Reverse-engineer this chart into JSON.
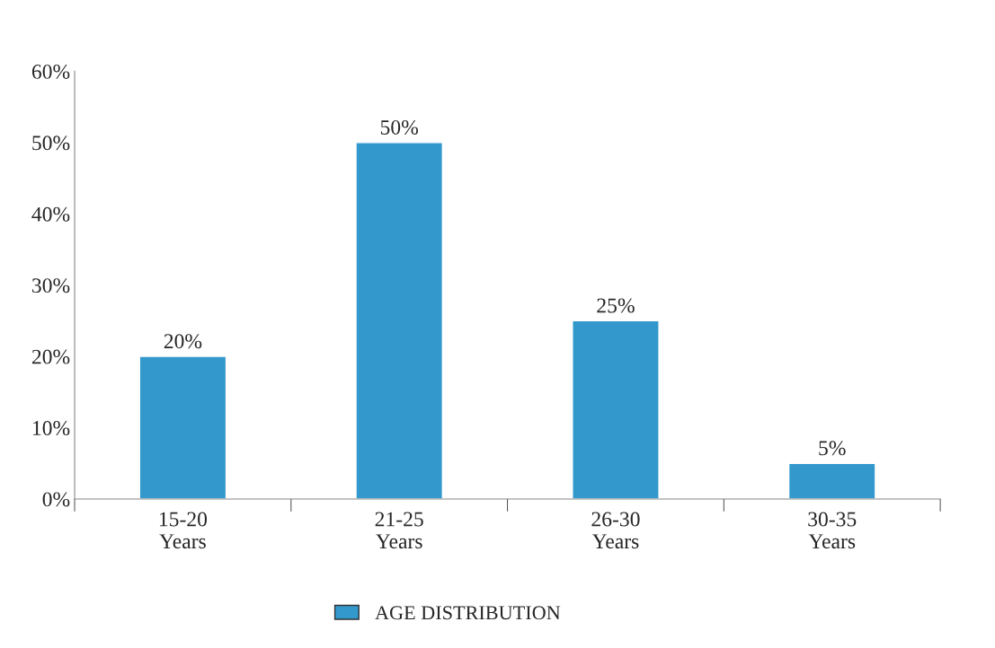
{
  "chart_data": {
    "type": "bar",
    "categories": [
      "15-20\nYears",
      "21-25\nYears",
      "26-30\nYears",
      "30-35\nYears"
    ],
    "series": [
      {
        "name": "AGE DISTRIBUTION",
        "color": "#3399cc",
        "values": [
          20,
          50,
          25,
          5
        ],
        "value_labels": [
          "20%",
          "50%",
          "25%",
          "5%"
        ]
      }
    ],
    "ylim": [
      0,
      60
    ],
    "yticks": [
      {
        "value": 0,
        "label": "0%"
      },
      {
        "value": 10,
        "label": "10%"
      },
      {
        "value": 20,
        "label": "20%"
      },
      {
        "value": 30,
        "label": "30%"
      },
      {
        "value": 40,
        "label": "40%"
      },
      {
        "value": 50,
        "label": "50%"
      },
      {
        "value": 60,
        "label": "60%"
      }
    ],
    "grid": false,
    "legend": "bottom"
  }
}
